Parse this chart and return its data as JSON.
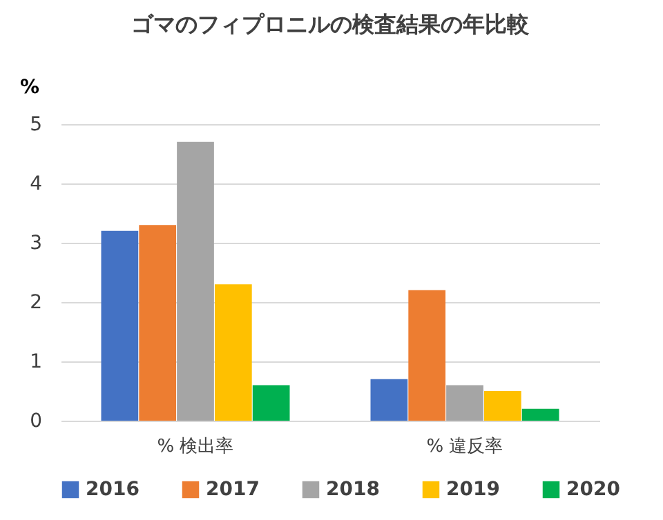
{
  "chart_data": {
    "type": "bar",
    "title": "ゴマのフィプロニルの検査結果の年比較",
    "ylabel": "%",
    "categories": [
      "% 検出率",
      "% 違反率"
    ],
    "series": [
      {
        "name": "2016",
        "color": "#4472c4",
        "values": [
          3.2,
          0.7
        ]
      },
      {
        "name": "2017",
        "color": "#ed7d31",
        "values": [
          3.3,
          2.2
        ]
      },
      {
        "name": "2018",
        "color": "#a5a5a5",
        "values": [
          4.7,
          0.6
        ]
      },
      {
        "name": "2019",
        "color": "#ffc000",
        "values": [
          2.3,
          0.5
        ]
      },
      {
        "name": "2020",
        "color": "#00b050",
        "values": [
          0.6,
          0.2
        ]
      }
    ],
    "ylim": [
      0,
      5
    ],
    "yticks": [
      0,
      1,
      2,
      3,
      4,
      5
    ],
    "grid": "y",
    "legend": "bottom"
  }
}
